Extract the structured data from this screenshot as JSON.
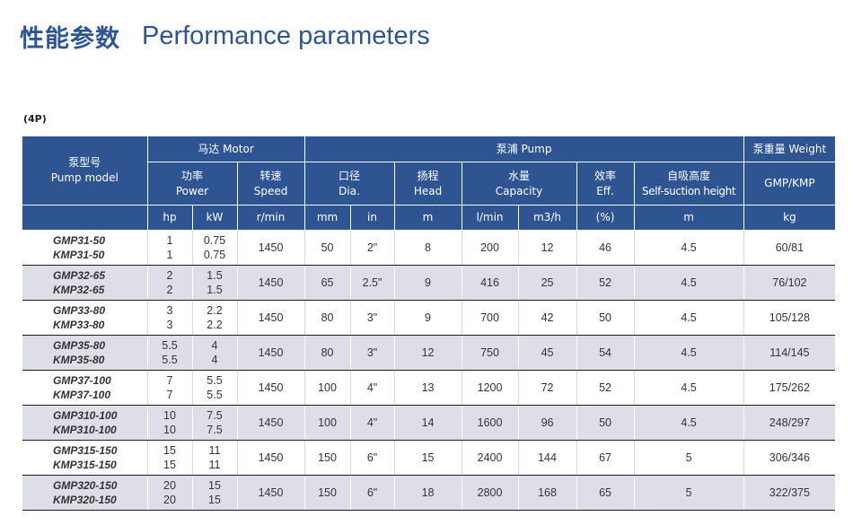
{
  "title": {
    "zh": "性能参数",
    "en": "Performance parameters"
  },
  "subtitle": "(4P)",
  "header": {
    "pump_model": {
      "zh": "泵型号",
      "en": "Pump model"
    },
    "motor": "马达 Motor",
    "pump": "泵浦 Pump",
    "weight": "泵重量 Weight",
    "power": {
      "zh": "功率",
      "en": "Power"
    },
    "speed": {
      "zh": "转速",
      "en": "Speed"
    },
    "dia": {
      "zh": "口径",
      "en": "Dia."
    },
    "head": {
      "zh": "扬程",
      "en": "Head"
    },
    "capacity": {
      "zh": "水量",
      "en": "Capacity"
    },
    "eff": {
      "zh": "效率",
      "en": "Eff."
    },
    "self_suction": {
      "zh": "自吸高度",
      "en": "Self-suction height"
    },
    "gmp_kmp": "GMP/KMP",
    "units": [
      "hp",
      "kW",
      "r/min",
      "mm",
      "in",
      "m",
      "l/min",
      "m3/h",
      "(%)",
      "m",
      "kg"
    ]
  },
  "rows": [
    {
      "model1": "GMP31-50",
      "model2": "KMP31-50",
      "hp1": "1",
      "hp2": "1",
      "kw1": "0.75",
      "kw2": "0.75",
      "speed": "1450",
      "mm": "50",
      "in": "2\"",
      "head": "8",
      "lmin": "200",
      "m3h": "12",
      "eff": "46",
      "suction": "4.5",
      "weight": "60/81"
    },
    {
      "model1": "GMP32-65",
      "model2": "KMP32-65",
      "hp1": "2",
      "hp2": "2",
      "kw1": "1.5",
      "kw2": "1.5",
      "speed": "1450",
      "mm": "65",
      "in": "2.5\"",
      "head": "9",
      "lmin": "416",
      "m3h": "25",
      "eff": "52",
      "suction": "4.5",
      "weight": "76/102"
    },
    {
      "model1": "GMP33-80",
      "model2": "KMP33-80",
      "hp1": "3",
      "hp2": "3",
      "kw1": "2.2",
      "kw2": "2.2",
      "speed": "1450",
      "mm": "80",
      "in": "3\"",
      "head": "9",
      "lmin": "700",
      "m3h": "42",
      "eff": "50",
      "suction": "4.5",
      "weight": "105/128"
    },
    {
      "model1": "GMP35-80",
      "model2": "KMP35-80",
      "hp1": "5.5",
      "hp2": "5.5",
      "kw1": "4",
      "kw2": "4",
      "speed": "1450",
      "mm": "80",
      "in": "3\"",
      "head": "12",
      "lmin": "750",
      "m3h": "45",
      "eff": "54",
      "suction": "4.5",
      "weight": "114/145"
    },
    {
      "model1": "GMP37-100",
      "model2": "KMP37-100",
      "hp1": "7",
      "hp2": "7",
      "kw1": "5.5",
      "kw2": "5.5",
      "speed": "1450",
      "mm": "100",
      "in": "4\"",
      "head": "13",
      "lmin": "1200",
      "m3h": "72",
      "eff": "52",
      "suction": "4.5",
      "weight": "175/262"
    },
    {
      "model1": "GMP310-100",
      "model2": "KMP310-100",
      "hp1": "10",
      "hp2": "10",
      "kw1": "7.5",
      "kw2": "7.5",
      "speed": "1450",
      "mm": "100",
      "in": "4\"",
      "head": "14",
      "lmin": "1600",
      "m3h": "96",
      "eff": "50",
      "suction": "4.5",
      "weight": "248/297"
    },
    {
      "model1": "GMP315-150",
      "model2": "KMP315-150",
      "hp1": "15",
      "hp2": "15",
      "kw1": "11",
      "kw2": "11",
      "speed": "1450",
      "mm": "150",
      "in": "6\"",
      "head": "15",
      "lmin": "2400",
      "m3h": "144",
      "eff": "67",
      "suction": "5",
      "weight": "306/346"
    },
    {
      "model1": "GMP320-150",
      "model2": "KMP320-150",
      "hp1": "20",
      "hp2": "20",
      "kw1": "15",
      "kw2": "15",
      "speed": "1450",
      "mm": "150",
      "in": "6\"",
      "head": "18",
      "lmin": "2800",
      "m3h": "168",
      "eff": "65",
      "suction": "5",
      "weight": "322/375"
    }
  ]
}
